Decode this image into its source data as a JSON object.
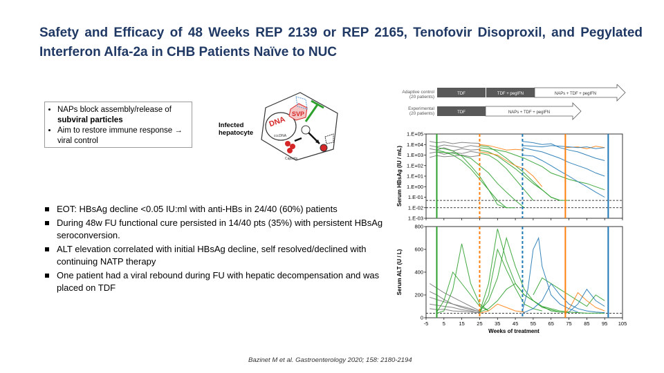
{
  "slide": {
    "title": "Safety and Efficacy of 48 Weeks REP 2139 or REP 2165, Tenofovir Disoproxil, and Pegylated Interferon Alfa-2a in CHB Patients Naïve to NUC",
    "nap_box": {
      "line1": "NAPs block assembly/release of",
      "line1_bold": "subviral particles",
      "line2": "Aim to restore immune response → viral control"
    },
    "hepatocyte": {
      "label": "Infected hepatocyte",
      "svp": "SVP",
      "cccdna": "cccDNA",
      "capsids": "Capsids"
    },
    "bullets": [
      "EOT: HBsAg decline <0.05 IU:ml with  anti-HBs in 24/40 (60%) patients",
      "During 48w FU functional cure persisted in 14/40 pts (35%)  with persistent HBsAg seroconversion.",
      "ALT elevation correlated with  initial HBsAg decline, self resolved/declined with continuing NATP therapy",
      "One patient had a viral rebound during FU with hepatic decompensation and was placed on TDF"
    ],
    "citation": "Bazinet M et al. Gastroenterology 2020; 158: 2180-2194"
  },
  "chart_data": [
    {
      "type": "line",
      "ylabel": "Serum HBsAg (IU / mL)",
      "y_tick_labels": [
        "1.E+05",
        "1.E+04",
        "1.E+03",
        "1.E+02",
        "1.E+01",
        "1.E+00",
        "1.E-01",
        "1.E-02",
        "1.E-03"
      ],
      "y_scale": "log",
      "ylim": [
        0.001,
        100000
      ],
      "x_tick_labels": [
        "-5",
        "5",
        "15",
        "25",
        "35",
        "45",
        "55",
        "65",
        "75",
        "85",
        "95",
        "105"
      ],
      "xlim": [
        -5,
        105
      ],
      "reference_lines": [
        0.05,
        0.01
      ],
      "phase_lines": [
        {
          "x": 1,
          "color": "#2ca02c",
          "style": "solid"
        },
        {
          "x": 25,
          "color": "#ff7f0e",
          "style": "dashed"
        },
        {
          "x": 49,
          "color": "#1f77b4",
          "style": "dashed"
        },
        {
          "x": 73,
          "color": "#ff7f0e",
          "style": "solid"
        },
        {
          "x": 97,
          "color": "#1f77b4",
          "style": "solid"
        }
      ],
      "series_colors": [
        "#777777",
        "#2ca02c",
        "#ff7f0e",
        "#1f77b4"
      ],
      "lines": [
        {
          "color": "#777777",
          "x": [
            -3,
            1,
            5,
            10,
            15,
            20,
            25
          ],
          "y": [
            4000,
            3000,
            5000,
            2500,
            4000,
            3000,
            3500
          ]
        },
        {
          "color": "#777777",
          "x": [
            -3,
            1,
            5,
            10,
            15,
            20,
            25
          ],
          "y": [
            1500,
            2000,
            1200,
            1800,
            1400,
            2200,
            1600
          ]
        },
        {
          "color": "#777777",
          "x": [
            -3,
            1,
            5,
            10,
            15,
            20,
            25
          ],
          "y": [
            8000,
            6000,
            9000,
            7000,
            5000,
            8000,
            6000
          ]
        },
        {
          "color": "#777777",
          "x": [
            -3,
            1,
            5,
            10,
            15,
            20,
            25
          ],
          "y": [
            600,
            900,
            700,
            800,
            1000,
            700,
            900
          ]
        },
        {
          "color": "#777777",
          "x": [
            -3,
            1,
            5,
            10,
            15,
            20,
            25
          ],
          "y": [
            20000,
            15000,
            18000,
            12000,
            16000,
            14000,
            13000
          ]
        },
        {
          "color": "#2ca02c",
          "x": [
            1,
            5,
            10,
            15,
            20,
            25,
            30,
            35,
            40,
            45
          ],
          "y": [
            3000,
            2000,
            1000,
            300,
            50,
            5,
            0.5,
            0.05,
            0.01,
            0.01
          ]
        },
        {
          "color": "#2ca02c",
          "x": [
            1,
            5,
            10,
            15,
            20,
            25,
            30,
            35,
            40
          ],
          "y": [
            5000,
            4000,
            2500,
            800,
            100,
            10,
            0.5,
            0.02,
            0.01
          ]
        },
        {
          "color": "#2ca02c",
          "x": [
            1,
            5,
            10,
            15,
            20,
            25,
            30,
            35,
            40,
            45,
            50
          ],
          "y": [
            2000,
            1800,
            1500,
            900,
            500,
            100,
            20,
            2,
            0.3,
            0.05,
            0.01
          ]
        },
        {
          "color": "#2ca02c",
          "x": [
            25,
            30,
            35,
            40,
            45,
            50,
            55,
            60,
            65,
            70,
            75
          ],
          "y": [
            3000,
            2000,
            800,
            200,
            50,
            10,
            2,
            0.5,
            0.1,
            0.05,
            0.05
          ]
        },
        {
          "color": "#2ca02c",
          "x": [
            25,
            30,
            35,
            40,
            45,
            50,
            55,
            60,
            65,
            70,
            75,
            80,
            85,
            90,
            95
          ],
          "y": [
            5000,
            4000,
            3000,
            2000,
            1000,
            500,
            200,
            80,
            20,
            10,
            5,
            3,
            2,
            1,
            0.5
          ]
        },
        {
          "color": "#2ca02c",
          "x": [
            25,
            30,
            35,
            40,
            45,
            50,
            55,
            60,
            65,
            70
          ],
          "y": [
            8000,
            6000,
            2000,
            500,
            100,
            20,
            3,
            0.5,
            0.1,
            0.05
          ]
        },
        {
          "color": "#2ca02c",
          "x": [
            25,
            30,
            35,
            40,
            45,
            50,
            55
          ],
          "y": [
            1500,
            1000,
            300,
            50,
            5,
            0.5,
            0.05
          ]
        },
        {
          "color": "#ff7f0e",
          "x": [
            25,
            30,
            35,
            40,
            45,
            50
          ],
          "y": [
            10000,
            8000,
            5000,
            3000,
            3500,
            3000
          ]
        },
        {
          "color": "#ff7f0e",
          "x": [
            25,
            30,
            35,
            40,
            45,
            50,
            55,
            60
          ],
          "y": [
            2000,
            1500,
            1000,
            300,
            100,
            50,
            10,
            1
          ]
        },
        {
          "color": "#ff7f0e",
          "x": [
            73,
            80,
            85,
            90,
            95
          ],
          "y": [
            5000,
            6000,
            4000,
            7000,
            5000
          ]
        },
        {
          "color": "#1f77b4",
          "x": [
            49,
            55,
            60,
            65,
            70,
            75,
            80,
            85,
            90,
            95
          ],
          "y": [
            20000,
            15000,
            10000,
            12000,
            5000,
            3000,
            2000,
            1000,
            500,
            300
          ]
        },
        {
          "color": "#1f77b4",
          "x": [
            49,
            55,
            60,
            65,
            70,
            75,
            80,
            85,
            90,
            95
          ],
          "y": [
            5000,
            3000,
            2000,
            1000,
            500,
            200,
            100,
            50,
            20,
            10
          ]
        },
        {
          "color": "#1f77b4",
          "x": [
            49,
            55,
            60,
            65,
            70,
            75,
            80,
            85,
            90,
            95
          ],
          "y": [
            8000,
            7000,
            6000,
            8000,
            7000,
            6000,
            5000,
            6000,
            4000,
            5000
          ]
        },
        {
          "color": "#1f77b4",
          "x": [
            49,
            55,
            60,
            65,
            70,
            75,
            80,
            85,
            90,
            95
          ],
          "y": [
            1000,
            800,
            300,
            100,
            30,
            10,
            3,
            1,
            0.3,
            0.1
          ]
        }
      ]
    },
    {
      "type": "line",
      "ylabel": "Serum ALT (U / L)",
      "xlabel": "Weeks of treatment",
      "y_tick_labels": [
        "0",
        "200",
        "400",
        "600",
        "800"
      ],
      "x_tick_labels": [
        "-5",
        "5",
        "15",
        "25",
        "35",
        "45",
        "55",
        "65",
        "75",
        "85",
        "95",
        "105"
      ],
      "xlim": [
        -5,
        105
      ],
      "ylim": [
        0,
        800
      ],
      "reference_lines": [
        40
      ],
      "phase_lines": [
        {
          "x": 1,
          "color": "#2ca02c",
          "style": "solid"
        },
        {
          "x": 25,
          "color": "#ff7f0e",
          "style": "dashed"
        },
        {
          "x": 49,
          "color": "#1f77b4",
          "style": "dashed"
        },
        {
          "x": 73,
          "color": "#ff7f0e",
          "style": "solid"
        },
        {
          "x": 97,
          "color": "#1f77b4",
          "style": "solid"
        }
      ],
      "lines": [
        {
          "color": "#777777",
          "x": [
            -3,
            1,
            5,
            10,
            15,
            20,
            25
          ],
          "y": [
            300,
            260,
            220,
            180,
            140,
            100,
            60
          ]
        },
        {
          "color": "#777777",
          "x": [
            -3,
            1,
            5,
            10,
            15,
            20,
            25
          ],
          "y": [
            180,
            160,
            140,
            120,
            100,
            80,
            50
          ]
        },
        {
          "color": "#777777",
          "x": [
            -3,
            1,
            5,
            10,
            15,
            20,
            25
          ],
          "y": [
            120,
            110,
            100,
            90,
            70,
            60,
            40
          ]
        },
        {
          "color": "#777777",
          "x": [
            -3,
            1,
            5,
            10,
            15,
            20,
            25
          ],
          "y": [
            80,
            70,
            75,
            60,
            55,
            50,
            45
          ]
        },
        {
          "color": "#777777",
          "x": [
            -3,
            1,
            5,
            10,
            15,
            20,
            25
          ],
          "y": [
            230,
            200,
            160,
            120,
            90,
            70,
            55
          ]
        },
        {
          "color": "#2ca02c",
          "x": [
            1,
            5,
            10,
            15,
            20,
            25,
            30
          ],
          "y": [
            50,
            150,
            400,
            300,
            200,
            100,
            60
          ]
        },
        {
          "color": "#2ca02c",
          "x": [
            1,
            5,
            10,
            15,
            20,
            25,
            30
          ],
          "y": [
            40,
            60,
            250,
            650,
            300,
            120,
            60
          ]
        },
        {
          "color": "#2ca02c",
          "x": [
            25,
            30,
            35,
            40,
            45,
            50,
            55,
            60,
            65,
            70
          ],
          "y": [
            50,
            300,
            780,
            500,
            300,
            200,
            150,
            100,
            60,
            50
          ]
        },
        {
          "color": "#2ca02c",
          "x": [
            25,
            30,
            35,
            40,
            45,
            50,
            55,
            60
          ],
          "y": [
            40,
            200,
            600,
            420,
            260,
            120,
            80,
            60
          ]
        },
        {
          "color": "#2ca02c",
          "x": [
            25,
            30,
            35,
            40,
            45,
            50,
            55,
            60,
            65,
            70,
            75
          ],
          "y": [
            60,
            150,
            350,
            700,
            450,
            250,
            150,
            90,
            70,
            50,
            45
          ]
        },
        {
          "color": "#2ca02c",
          "x": [
            25,
            30,
            35,
            40,
            45,
            50,
            55,
            60,
            65,
            70,
            75,
            80,
            85,
            90,
            95
          ],
          "y": [
            50,
            80,
            150,
            250,
            300,
            200,
            150,
            100,
            80,
            60,
            50,
            45,
            40,
            40,
            40
          ]
        },
        {
          "color": "#2ca02c",
          "x": [
            55,
            60,
            65,
            70,
            75,
            80,
            85,
            90,
            95
          ],
          "y": [
            200,
            350,
            300,
            250,
            200,
            150,
            100,
            200,
            150
          ]
        },
        {
          "color": "#ff7f0e",
          "x": [
            25,
            30,
            35,
            40,
            45,
            50
          ],
          "y": [
            40,
            60,
            120,
            90,
            60,
            50
          ]
        },
        {
          "color": "#ff7f0e",
          "x": [
            73,
            76,
            80,
            85,
            90,
            95
          ],
          "y": [
            40,
            100,
            220,
            150,
            90,
            60
          ]
        },
        {
          "color": "#1f77b4",
          "x": [
            49,
            52,
            55,
            58,
            60,
            63,
            65,
            70,
            75,
            80
          ],
          "y": [
            60,
            250,
            600,
            700,
            450,
            300,
            200,
            120,
            80,
            50
          ]
        },
        {
          "color": "#1f77b4",
          "x": [
            49,
            55,
            60,
            65,
            70,
            75,
            80,
            85,
            90,
            95
          ],
          "y": [
            40,
            80,
            150,
            300,
            200,
            120,
            80,
            60,
            50,
            45
          ]
        },
        {
          "color": "#1f77b4",
          "x": [
            75,
            80,
            85,
            90,
            95
          ],
          "y": [
            50,
            120,
            250,
            150,
            100
          ]
        }
      ]
    }
  ],
  "timeline": {
    "adaptive_label": "Adaptive control",
    "adaptive_sub": "(20 patients)",
    "experimental_label": "Experimental",
    "experimental_sub": "(20 patients)",
    "adaptive_phases": [
      "TDF",
      "TDF + pegIFN",
      "NAPs + TDF + pegIFN"
    ],
    "experimental_phases": [
      "TDF",
      "NAPs + TDF + pegIFN"
    ]
  }
}
